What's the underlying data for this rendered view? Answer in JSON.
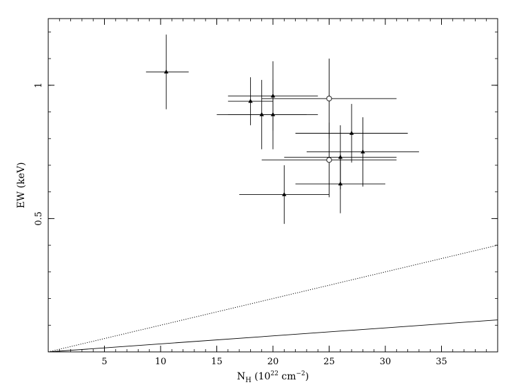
{
  "chart_data": {
    "type": "scatter",
    "xlabel": {
      "main": "N",
      "sub": "H",
      "open": " (10",
      "sup_exp": "22",
      "unit": " cm",
      "sup_unit": "−2",
      "close": ")"
    },
    "ylabel": "EW (keV)",
    "xlim": [
      0,
      40
    ],
    "ylim": [
      0,
      1.25
    ],
    "x_ticks": [
      5,
      10,
      15,
      20,
      25,
      30,
      35
    ],
    "x_tick_labels": [
      "5",
      "10",
      "15",
      "20",
      "25",
      "30",
      "35"
    ],
    "y_ticks": [
      0.5,
      1
    ],
    "y_tick_labels": [
      "0.5",
      "1"
    ],
    "y_minor_step": 0.1,
    "x_minor_step": 1,
    "grid": false,
    "series": [
      {
        "marker": "filled-triangle",
        "points": [
          {
            "x": 10.5,
            "y": 1.05,
            "xerr": [
              1.8,
              2.0
            ],
            "yerr": [
              0.14,
              0.14
            ]
          },
          {
            "x": 18.0,
            "y": 0.94,
            "xerr": [
              2.0,
              2.0
            ],
            "yerr": [
              0.09,
              0.09
            ]
          },
          {
            "x": 20.0,
            "y": 0.96,
            "xerr": [
              4.0,
              4.0
            ],
            "yerr": [
              0.13,
              0.13
            ]
          },
          {
            "x": 19.0,
            "y": 0.89,
            "xerr": [
              4.0,
              4.0
            ],
            "yerr": [
              0.13,
              0.13
            ]
          },
          {
            "x": 20.0,
            "y": 0.89,
            "xerr": [
              4.0,
              4.0
            ],
            "yerr": [
              0.13,
              0.13
            ]
          },
          {
            "x": 27.0,
            "y": 0.82,
            "xerr": [
              5.0,
              5.0
            ],
            "yerr": [
              0.11,
              0.11
            ]
          },
          {
            "x": 28.0,
            "y": 0.75,
            "xerr": [
              5.0,
              5.0
            ],
            "yerr": [
              0.13,
              0.13
            ]
          },
          {
            "x": 26.0,
            "y": 0.73,
            "xerr": [
              5.0,
              5.0
            ],
            "yerr": [
              0.12,
              0.12
            ]
          },
          {
            "x": 26.0,
            "y": 0.63,
            "xerr": [
              4.0,
              4.0
            ],
            "yerr": [
              0.11,
              0.11
            ]
          },
          {
            "x": 21.0,
            "y": 0.59,
            "xerr": [
              4.0,
              4.0
            ],
            "yerr": [
              0.11,
              0.11
            ]
          }
        ]
      },
      {
        "marker": "open-circle",
        "points": [
          {
            "x": 25.0,
            "y": 0.95,
            "xerr": [
              6.0,
              6.0
            ],
            "yerr": [
              0.15,
              0.15
            ]
          },
          {
            "x": 25.0,
            "y": 0.72,
            "xerr": [
              6.0,
              6.0
            ],
            "yerr": [
              0.14,
              0.14
            ]
          }
        ]
      }
    ],
    "lines": [
      {
        "style": "dotted",
        "x": [
          0,
          40
        ],
        "y": [
          0,
          0.4
        ]
      },
      {
        "style": "solid",
        "x": [
          0,
          40
        ],
        "y": [
          0,
          0.12
        ]
      }
    ]
  }
}
